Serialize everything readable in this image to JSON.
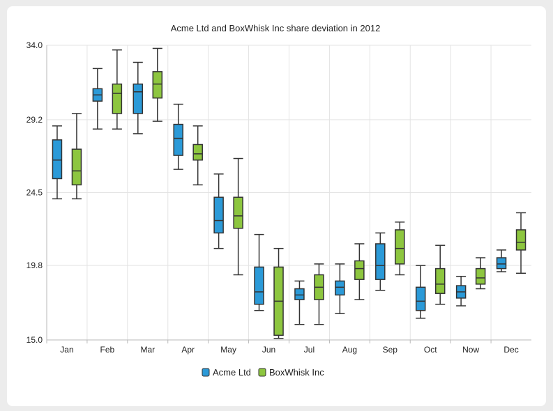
{
  "chart_data": {
    "type": "boxplot",
    "title": "Acme Ltd and BoxWhisk Inc share deviation in 2012",
    "xlabel": "",
    "ylabel": "",
    "ylim": [
      15.0,
      34.0
    ],
    "yticks": [
      "15.0",
      "19.8",
      "24.5",
      "29.2",
      "34.0"
    ],
    "categories": [
      "Jan",
      "Feb",
      "Mar",
      "Apr",
      "May",
      "Jun",
      "Jul",
      "Aug",
      "Sep",
      "Oct",
      "Now",
      "Dec"
    ],
    "legend_position": "bottom-center",
    "series": [
      {
        "name": "Acme Ltd",
        "color": "#2b9ad8",
        "boxes": [
          {
            "min": 24.1,
            "q1": 25.4,
            "median": 26.6,
            "q3": 27.9,
            "max": 28.8
          },
          {
            "min": 28.6,
            "q1": 30.4,
            "median": 30.8,
            "q3": 31.2,
            "max": 32.5
          },
          {
            "min": 28.3,
            "q1": 29.6,
            "median": 31.0,
            "q3": 31.5,
            "max": 32.9
          },
          {
            "min": 26.0,
            "q1": 26.9,
            "median": 28.0,
            "q3": 28.9,
            "max": 30.2
          },
          {
            "min": 20.9,
            "q1": 21.9,
            "median": 22.7,
            "q3": 24.2,
            "max": 25.7
          },
          {
            "min": 16.9,
            "q1": 17.3,
            "median": 18.1,
            "q3": 19.7,
            "max": 21.8
          },
          {
            "min": 16.0,
            "q1": 17.6,
            "median": 17.9,
            "q3": 18.3,
            "max": 18.8
          },
          {
            "min": 16.7,
            "q1": 17.9,
            "median": 18.4,
            "q3": 18.8,
            "max": 19.9
          },
          {
            "min": 18.2,
            "q1": 18.9,
            "median": 19.8,
            "q3": 21.2,
            "max": 21.9
          },
          {
            "min": 16.4,
            "q1": 16.9,
            "median": 17.5,
            "q3": 18.4,
            "max": 19.8
          },
          {
            "min": 17.2,
            "q1": 17.7,
            "median": 18.1,
            "q3": 18.5,
            "max": 19.1
          },
          {
            "min": 19.4,
            "q1": 19.6,
            "median": 19.9,
            "q3": 20.3,
            "max": 20.8
          }
        ]
      },
      {
        "name": "BoxWhisk Inc",
        "color": "#8dc63f",
        "boxes": [
          {
            "min": 24.1,
            "q1": 25.0,
            "median": 25.9,
            "q3": 27.3,
            "max": 29.6
          },
          {
            "min": 28.6,
            "q1": 29.6,
            "median": 30.9,
            "q3": 31.5,
            "max": 33.7
          },
          {
            "min": 29.1,
            "q1": 30.6,
            "median": 31.5,
            "q3": 32.3,
            "max": 33.8
          },
          {
            "min": 25.0,
            "q1": 26.6,
            "median": 27.0,
            "q3": 27.6,
            "max": 28.8
          },
          {
            "min": 19.2,
            "q1": 22.2,
            "median": 23.0,
            "q3": 24.2,
            "max": 26.7
          },
          {
            "min": 15.1,
            "q1": 15.3,
            "median": 17.5,
            "q3": 19.7,
            "max": 20.9
          },
          {
            "min": 16.0,
            "q1": 17.6,
            "median": 18.4,
            "q3": 19.2,
            "max": 19.9
          },
          {
            "min": 17.6,
            "q1": 18.9,
            "median": 19.6,
            "q3": 20.1,
            "max": 21.2
          },
          {
            "min": 19.2,
            "q1": 19.9,
            "median": 20.9,
            "q3": 22.1,
            "max": 22.6
          },
          {
            "min": 17.3,
            "q1": 18.0,
            "median": 18.6,
            "q3": 19.6,
            "max": 21.1
          },
          {
            "min": 18.3,
            "q1": 18.6,
            "median": 19.0,
            "q3": 19.6,
            "max": 20.3
          },
          {
            "min": 19.3,
            "q1": 20.8,
            "median": 21.3,
            "q3": 22.1,
            "max": 23.2
          }
        ]
      }
    ]
  }
}
